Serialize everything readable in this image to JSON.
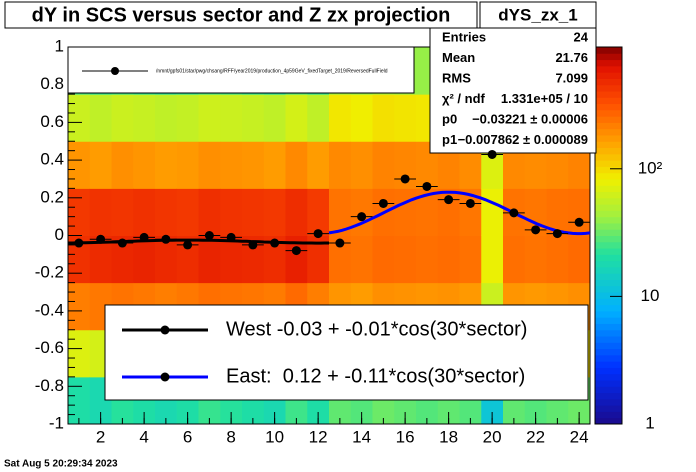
{
  "chart_data": {
    "type": "heatmap-profile",
    "title": "dY in SCS versus sector and Z zx projection",
    "xlim": [
      0.5,
      24.5
    ],
    "xticks": [
      2,
      4,
      6,
      8,
      10,
      12,
      14,
      16,
      18,
      20,
      22,
      24
    ],
    "ylim": [
      -1,
      1
    ],
    "yticks": [
      -1,
      -0.8,
      -0.6,
      -0.4,
      -0.2,
      0,
      0.2,
      0.4,
      0.6,
      0.8,
      1
    ],
    "zlim": [
      1,
      900
    ],
    "zlog": true,
    "zticks": [
      1,
      10,
      {
        "value": 100,
        "label": "10²"
      }
    ],
    "heatmap": {
      "xbins": [
        0.5,
        1.5,
        2.5,
        3.5,
        4.5,
        5.5,
        6.5,
        7.5,
        8.5,
        9.5,
        10.5,
        11.5,
        12.5,
        13.5,
        14.5,
        15.5,
        16.5,
        17.5,
        18.5,
        19.5,
        20.5,
        21.5,
        22.5,
        23.5,
        24.5
      ],
      "ybins": [
        -1,
        -0.75,
        -0.5,
        -0.25,
        0,
        0.25,
        0.5,
        0.75,
        1
      ],
      "z": [
        [
          20,
          70,
          220,
          450,
          420,
          180,
          60,
          25
        ],
        [
          18,
          65,
          230,
          480,
          440,
          170,
          55,
          22
        ],
        [
          22,
          75,
          240,
          500,
          430,
          190,
          60,
          24
        ],
        [
          20,
          70,
          230,
          520,
          450,
          180,
          58,
          22
        ],
        [
          18,
          66,
          220,
          490,
          430,
          170,
          55,
          20
        ],
        [
          20,
          70,
          230,
          470,
          420,
          175,
          57,
          22
        ],
        [
          24,
          80,
          250,
          520,
          460,
          190,
          62,
          25
        ],
        [
          22,
          76,
          240,
          500,
          440,
          185,
          60,
          24
        ],
        [
          20,
          72,
          235,
          490,
          430,
          180,
          58,
          22
        ],
        [
          18,
          68,
          225,
          470,
          420,
          170,
          55,
          20
        ],
        [
          25,
          85,
          260,
          540,
          470,
          200,
          65,
          26
        ],
        [
          20,
          70,
          220,
          460,
          410,
          170,
          55,
          22
        ],
        [
          30,
          90,
          180,
          250,
          240,
          200,
          90,
          40
        ],
        [
          28,
          85,
          170,
          240,
          230,
          190,
          85,
          38
        ],
        [
          32,
          95,
          190,
          260,
          250,
          210,
          95,
          42
        ],
        [
          30,
          90,
          185,
          255,
          245,
          205,
          92,
          40
        ],
        [
          28,
          88,
          180,
          250,
          240,
          200,
          90,
          40
        ],
        [
          30,
          92,
          185,
          255,
          250,
          210,
          95,
          42
        ],
        [
          28,
          85,
          175,
          245,
          235,
          195,
          88,
          38
        ],
        [
          12,
          35,
          60,
          80,
          80,
          70,
          45,
          20
        ],
        [
          30,
          90,
          180,
          250,
          240,
          200,
          90,
          40
        ],
        [
          28,
          85,
          175,
          240,
          235,
          195,
          85,
          38
        ],
        [
          30,
          90,
          180,
          250,
          245,
          200,
          90,
          40
        ],
        [
          32,
          95,
          190,
          260,
          250,
          210,
          95,
          42
        ]
      ]
    },
    "points": {
      "color": "#000000",
      "x": [
        1,
        2,
        3,
        4,
        5,
        6,
        7,
        8,
        9,
        10,
        11,
        12,
        13,
        14,
        15,
        16,
        17,
        18,
        19,
        20,
        21,
        22,
        23,
        24
      ],
      "y": [
        -0.04,
        -0.02,
        -0.04,
        -0.01,
        -0.02,
        -0.05,
        0.0,
        -0.01,
        -0.05,
        -0.04,
        -0.08,
        0.01,
        -0.04,
        0.1,
        0.17,
        0.3,
        0.26,
        0.19,
        0.17,
        0.43,
        0.12,
        0.03,
        0.01,
        0.07
      ]
    },
    "fits": [
      {
        "color": "#000000",
        "p0": -0.03221,
        "p1": -0.007862,
        "xrange": [
          0.5,
          12.5
        ]
      },
      {
        "color": "#0000ff",
        "p0": 0.12,
        "p1": -0.11,
        "xrange": [
          12.5,
          24.5
        ]
      }
    ],
    "legend_top": {
      "label": "/nmnt/gpfs01/star/pwg/chsang/RFF/year2019/production_4p59GeV_fixedTarget_2019/ReversedFullField",
      "color": "#000000"
    },
    "legend": [
      {
        "label": "West -0.03 + -0.01*cos(30*sector)",
        "color": "#000000"
      },
      {
        "label": "East:  0.12 + -0.11*cos(30*sector)",
        "color": "#0000ff"
      }
    ],
    "stats": {
      "title": "dYS_zx_1",
      "rows": [
        {
          "label": "Entries",
          "value": "24"
        },
        {
          "label": "Mean",
          "value": "21.76"
        },
        {
          "label": "RMS",
          "value": "7.099"
        },
        {
          "label": "χ² / ndf",
          "value": "1.331e+05 / 10"
        },
        {
          "label": "p0",
          "value": "−0.03221 ± 0.00006"
        },
        {
          "label": "p1",
          "value": "−0.007862 ± 0.000089"
        }
      ]
    },
    "timestamp": "Sat Aug  5 20:29:34 2023"
  }
}
